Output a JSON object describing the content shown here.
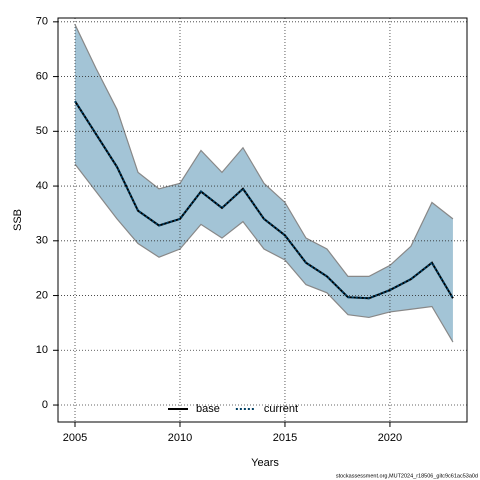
{
  "chart_data": {
    "type": "line",
    "x_label": "Years",
    "y_label": "SSB",
    "caption": "stockassessment.org,MUT2024_r18506_gitc9c61ac53a0d",
    "x": [
      2005,
      2006,
      2007,
      2008,
      2009,
      2010,
      2011,
      2012,
      2013,
      2014,
      2015,
      2016,
      2017,
      2018,
      2019,
      2020,
      2021,
      2022,
      2023
    ],
    "series": [
      {
        "name": "base",
        "color": "#000000",
        "dash": false,
        "values": [
          55.5,
          49.5,
          43.5,
          35.5,
          32.8,
          34,
          39,
          36,
          39.5,
          34,
          31,
          26,
          23.5,
          19.7,
          19.5,
          21,
          23,
          26,
          19.5
        ]
      },
      {
        "name": "current",
        "color": "#003f63",
        "dash": true,
        "values": [
          55.5,
          49.5,
          43.5,
          35.5,
          32.8,
          34,
          39,
          36,
          39.5,
          34,
          31,
          26,
          23.5,
          19.7,
          19.5,
          21,
          23,
          26,
          19.5
        ]
      }
    ],
    "band": {
      "color": "#a3c4d6",
      "edge": "#888888",
      "upper": [
        69.5,
        61.5,
        54,
        42.5,
        39.5,
        40.5,
        46.5,
        42.5,
        47,
        40.5,
        37,
        30.5,
        28.5,
        23.5,
        23.5,
        25.5,
        29,
        37,
        34
      ],
      "lower": [
        44,
        39,
        34,
        29.5,
        27,
        28.5,
        33,
        30.5,
        33.5,
        28.5,
        26.5,
        22,
        20.5,
        16.5,
        16,
        17,
        17.5,
        18,
        11.5
      ]
    },
    "xlim": [
      2004.19,
      2023.67
    ],
    "ylim": [
      -3.1,
      70.7
    ],
    "xticks": [
      2005,
      2010,
      2015,
      2020
    ],
    "yticks": [
      0,
      10,
      20,
      30,
      40,
      50,
      60,
      70
    ],
    "grid": true,
    "legend": "bottom"
  }
}
